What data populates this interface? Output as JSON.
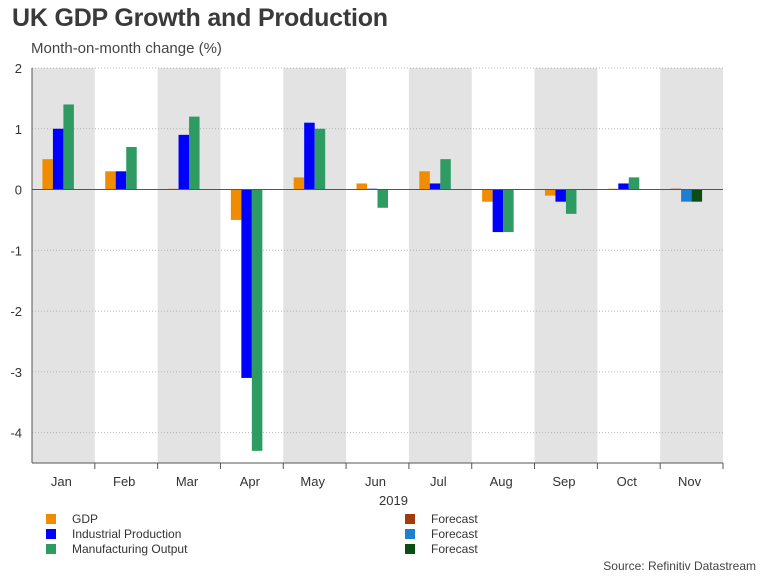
{
  "title": "UK GDP Growth and Production",
  "subtitle": "Month-on-month change (%)",
  "source": "Source: Refinitiv Datastream",
  "chart_data": {
    "type": "bar",
    "title": "UK GDP Growth and Production",
    "subtitle": "Month-on-month change (%)",
    "xlabel": "2019",
    "ylabel": "",
    "ylim": [
      -4.5,
      2
    ],
    "yticks": [
      2,
      1,
      0,
      -1,
      -2,
      -3,
      -4
    ],
    "ytick_labels": [
      "2",
      "1",
      "0",
      "-1",
      "-2",
      "-3",
      "-4"
    ],
    "categories": [
      "Jan",
      "Feb",
      "Mar",
      "Apr",
      "May",
      "Jun",
      "Jul",
      "Aug",
      "Sep",
      "Oct",
      "Nov"
    ],
    "shaded_categories": [
      "Jan",
      "Mar",
      "May",
      "Jul",
      "Sep",
      "Nov"
    ],
    "grid": true,
    "series": [
      {
        "name": "GDP",
        "color": "#f08c00",
        "values": [
          0.5,
          0.3,
          0.0,
          -0.5,
          0.2,
          0.1,
          0.3,
          -0.2,
          -0.1,
          0.0,
          null
        ]
      },
      {
        "name": "Industrial Production",
        "color": "#0000ff",
        "values": [
          1.0,
          0.3,
          0.9,
          -3.1,
          1.1,
          0.0,
          0.1,
          -0.7,
          -0.2,
          0.1,
          null
        ]
      },
      {
        "name": "Manufacturing Output",
        "color": "#2e9b63",
        "values": [
          1.4,
          0.7,
          1.2,
          -4.3,
          1.0,
          -0.3,
          0.5,
          -0.7,
          -0.4,
          0.2,
          null
        ]
      },
      {
        "name": "Forecast",
        "color": "#a23a0c",
        "values": [
          null,
          null,
          null,
          null,
          null,
          null,
          null,
          null,
          null,
          null,
          0.0
        ]
      },
      {
        "name": "Forecast",
        "color": "#1c7fd1",
        "values": [
          null,
          null,
          null,
          null,
          null,
          null,
          null,
          null,
          null,
          null,
          -0.2
        ]
      },
      {
        "name": "Forecast",
        "color": "#0b4d14",
        "values": [
          null,
          null,
          null,
          null,
          null,
          null,
          null,
          null,
          null,
          null,
          -0.2
        ]
      }
    ]
  },
  "legend": {
    "left": [
      {
        "label": "GDP",
        "color": "#f08c00"
      },
      {
        "label": "Industrial Production",
        "color": "#0000ff"
      },
      {
        "label": "Manufacturing Output",
        "color": "#2e9b63"
      }
    ],
    "right": [
      {
        "label": "Forecast",
        "color": "#a23a0c"
      },
      {
        "label": "Forecast",
        "color": "#1c7fd1"
      },
      {
        "label": "Forecast",
        "color": "#0b4d14"
      }
    ]
  }
}
